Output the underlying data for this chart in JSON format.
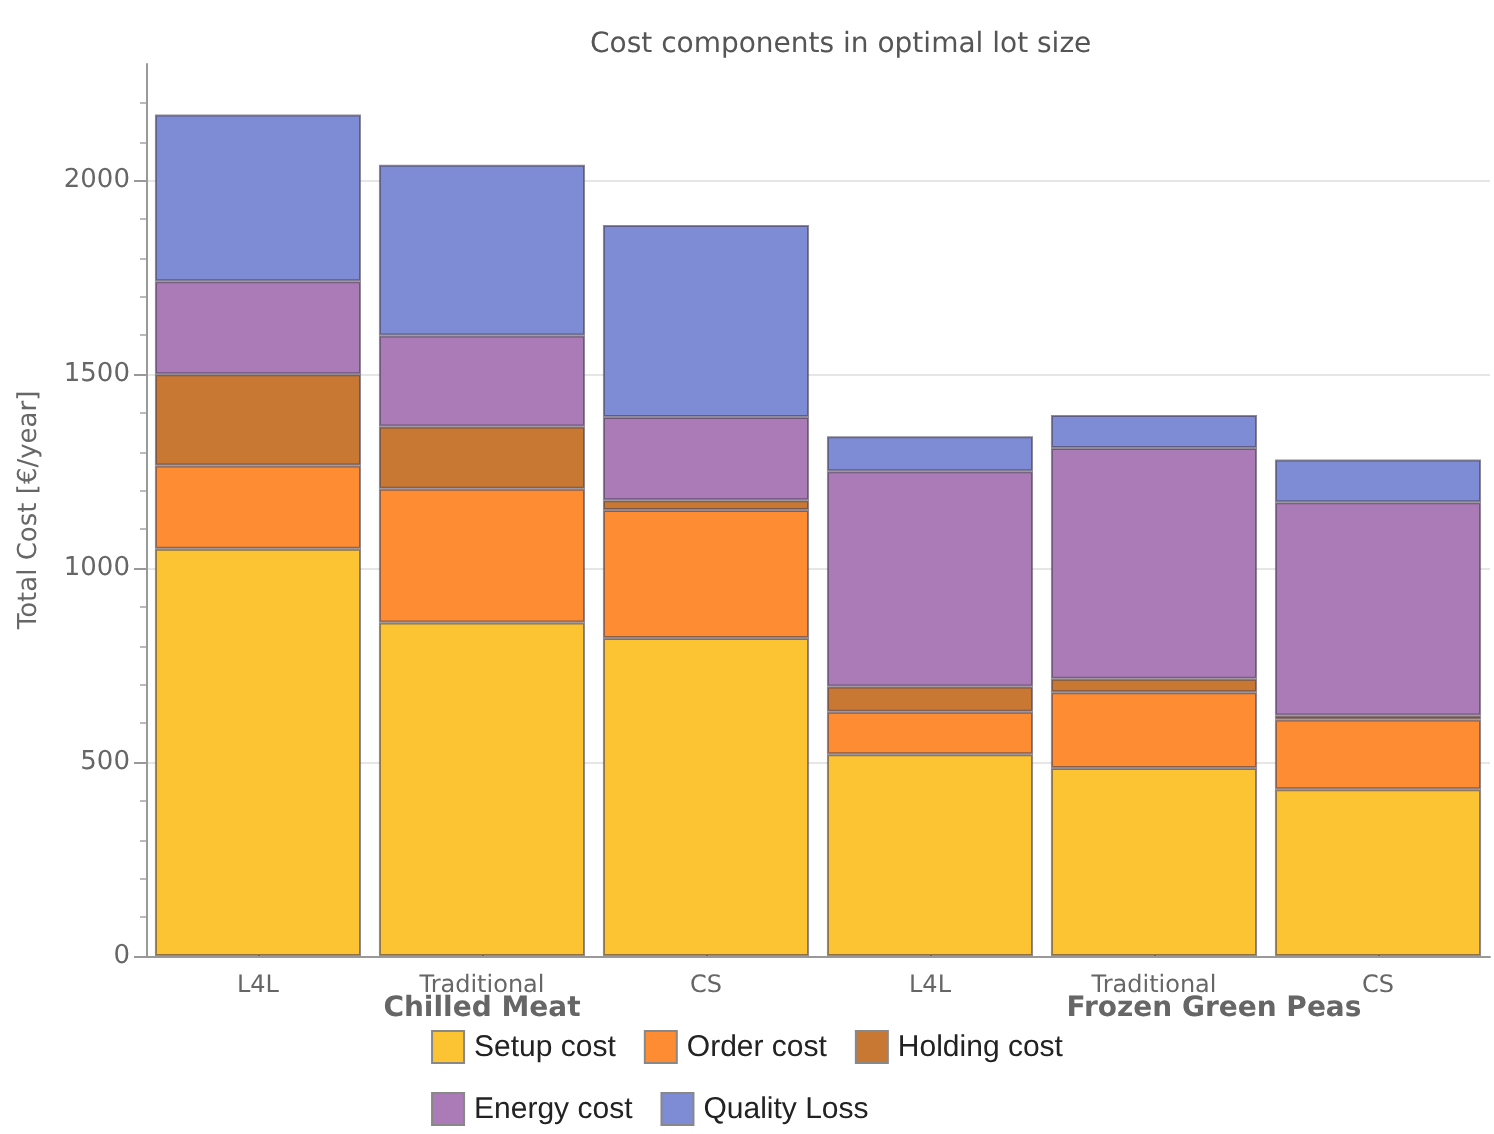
{
  "chart_data": {
    "type": "bar",
    "title": "Cost components in optimal lot size",
    "ylabel": "Total Cost [€/year]",
    "categories": [
      "L4L",
      "Traditional",
      "CS",
      "L4L",
      "Traditional",
      "CS"
    ],
    "stacked": true,
    "series": [
      {
        "name": "Setup cost",
        "color": "#fcc433",
        "values": [
          1050,
          860,
          820,
          520,
          485,
          430
        ]
      },
      {
        "name": "Order cost",
        "color": "#fd8c33",
        "values": [
          215,
          345,
          330,
          110,
          195,
          180
        ]
      },
      {
        "name": "Holding cost",
        "color": "#c87833",
        "values": [
          235,
          160,
          25,
          65,
          35,
          10
        ]
      },
      {
        "name": "Energy cost",
        "color": "#ab7bb8",
        "values": [
          240,
          235,
          215,
          555,
          595,
          550
        ]
      },
      {
        "name": "Quality Loss",
        "color": "#7d8cd4",
        "values": [
          430,
          440,
          495,
          90,
          85,
          110
        ]
      }
    ],
    "annotations": [
      "Chilled Meat",
      "Frozen Green Peas"
    ],
    "ylim": [
      0,
      2300
    ],
    "yticks": [
      0,
      500,
      1000,
      1500,
      2000
    ],
    "grid": "y",
    "legend": "bottom"
  }
}
